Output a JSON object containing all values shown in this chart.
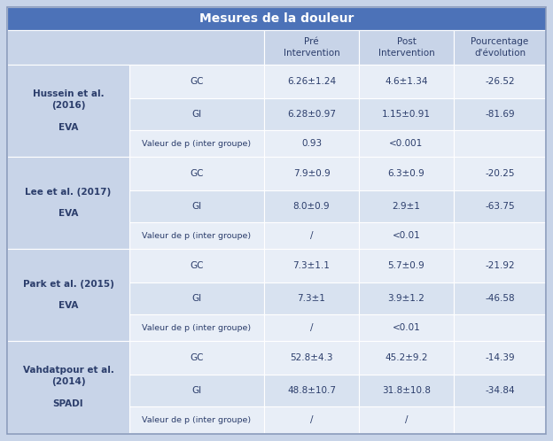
{
  "title": "Mesures de la douleur",
  "title_bg": "#4C72B8",
  "title_color": "#FFFFFF",
  "header_bg": "#C8D4E8",
  "row_bg_alt": "#D8E2F0",
  "row_bg_main": "#E8EEF7",
  "border_color": "#FFFFFF",
  "outer_bg": "#C8D4E8",
  "col_headers": [
    "Pré\nIntervention",
    "Post\nIntervention",
    "Pourcentage\nd'évolution"
  ],
  "studies": [
    {
      "author": "Hussein et al.\n(2016)\n\nEVA",
      "rows": [
        [
          "GC",
          "6.26±1.24",
          "4.6±1.34",
          "-26.52"
        ],
        [
          "GI",
          "6.28±0.97",
          "1.15±0.91",
          "-81.69"
        ],
        [
          "Valeur de p (inter groupe)",
          "0.93",
          "<0.001",
          ""
        ]
      ]
    },
    {
      "author": "Lee et al. (2017)\n\nEVA",
      "rows": [
        [
          "GC",
          "7.9±0.9",
          "6.3±0.9",
          "-20.25"
        ],
        [
          "GI",
          "8.0±0.9",
          "2.9±1",
          "-63.75"
        ],
        [
          "Valeur de p (inter groupe)",
          "/",
          "<0.01",
          ""
        ]
      ]
    },
    {
      "author": "Park et al. (2015)\n\nEVA",
      "rows": [
        [
          "GC",
          "7.3±1.1",
          "5.7±0.9",
          "-21.92"
        ],
        [
          "GI",
          "7.3±1",
          "3.9±1.2",
          "-46.58"
        ],
        [
          "Valeur de p (inter groupe)",
          "/",
          "<0.01",
          ""
        ]
      ]
    },
    {
      "author": "Vahdatpour et al.\n(2014)\n\nSPADI",
      "rows": [
        [
          "GC",
          "52.8±4.3",
          "45.2±9.2",
          "-14.39"
        ],
        [
          "GI",
          "48.8±10.7",
          "31.8±10.8",
          "-34.84"
        ],
        [
          "Valeur de p (inter groupe)",
          "/",
          "/",
          ""
        ]
      ]
    }
  ],
  "figsize": [
    6.24,
    4.98
  ],
  "dpi": 100
}
